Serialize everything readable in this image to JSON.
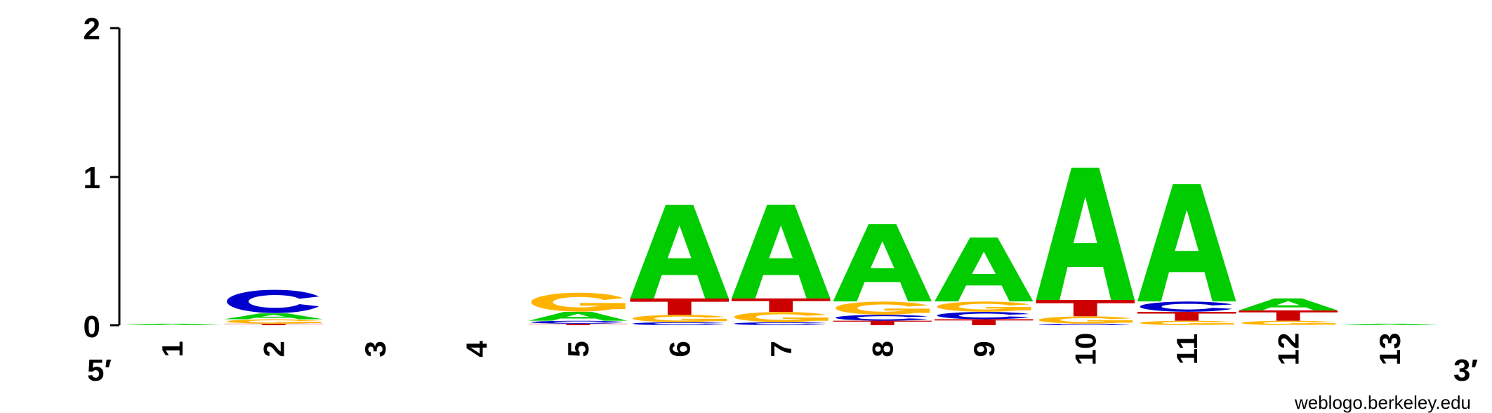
{
  "chart_data": {
    "type": "sequence-logo",
    "y_ticks": [
      "0",
      "1",
      "2"
    ],
    "ylim": [
      0,
      2
    ],
    "end_labels": {
      "left": "5′",
      "right": "3′"
    },
    "credit": "weblogo.berkeley.edu",
    "colors": {
      "A": "#00cc00",
      "C": "#0000cc",
      "G": "#ffb300",
      "T": "#cc0000"
    },
    "positions": [
      {
        "label": "1",
        "stack": [
          {
            "letter": "A",
            "bits": 0.01
          }
        ]
      },
      {
        "label": "2",
        "stack": [
          {
            "letter": "T",
            "bits": 0.01
          },
          {
            "letter": "G",
            "bits": 0.03
          },
          {
            "letter": "A",
            "bits": 0.04
          },
          {
            "letter": "C",
            "bits": 0.16
          }
        ]
      },
      {
        "label": "3",
        "stack": []
      },
      {
        "label": "4",
        "stack": []
      },
      {
        "label": "5",
        "stack": [
          {
            "letter": "T",
            "bits": 0.01
          },
          {
            "letter": "C",
            "bits": 0.02
          },
          {
            "letter": "A",
            "bits": 0.06
          },
          {
            "letter": "G",
            "bits": 0.13
          }
        ]
      },
      {
        "label": "6",
        "stack": [
          {
            "letter": "C",
            "bits": 0.02
          },
          {
            "letter": "G",
            "bits": 0.05
          },
          {
            "letter": "T",
            "bits": 0.11
          },
          {
            "letter": "A",
            "bits": 0.63
          }
        ]
      },
      {
        "label": "7",
        "stack": [
          {
            "letter": "C",
            "bits": 0.02
          },
          {
            "letter": "G",
            "bits": 0.07
          },
          {
            "letter": "T",
            "bits": 0.09
          },
          {
            "letter": "A",
            "bits": 0.63
          }
        ]
      },
      {
        "label": "8",
        "stack": [
          {
            "letter": "T",
            "bits": 0.03
          },
          {
            "letter": "C",
            "bits": 0.04
          },
          {
            "letter": "G",
            "bits": 0.09
          },
          {
            "letter": "A",
            "bits": 0.52
          }
        ]
      },
      {
        "label": "9",
        "stack": [
          {
            "letter": "T",
            "bits": 0.04
          },
          {
            "letter": "C",
            "bits": 0.05
          },
          {
            "letter": "G",
            "bits": 0.07
          },
          {
            "letter": "A",
            "bits": 0.43
          }
        ]
      },
      {
        "label": "10",
        "stack": [
          {
            "letter": "C",
            "bits": 0.01
          },
          {
            "letter": "G",
            "bits": 0.05
          },
          {
            "letter": "T",
            "bits": 0.11
          },
          {
            "letter": "A",
            "bits": 0.89
          }
        ]
      },
      {
        "label": "11",
        "stack": [
          {
            "letter": "G",
            "bits": 0.03
          },
          {
            "letter": "T",
            "bits": 0.06
          },
          {
            "letter": "C",
            "bits": 0.07
          },
          {
            "letter": "A",
            "bits": 0.79
          }
        ]
      },
      {
        "label": "12",
        "stack": [
          {
            "letter": "G",
            "bits": 0.03
          },
          {
            "letter": "T",
            "bits": 0.07
          },
          {
            "letter": "A",
            "bits": 0.08
          }
        ]
      },
      {
        "label": "13",
        "stack": [
          {
            "letter": "A",
            "bits": 0.01
          }
        ]
      }
    ]
  }
}
